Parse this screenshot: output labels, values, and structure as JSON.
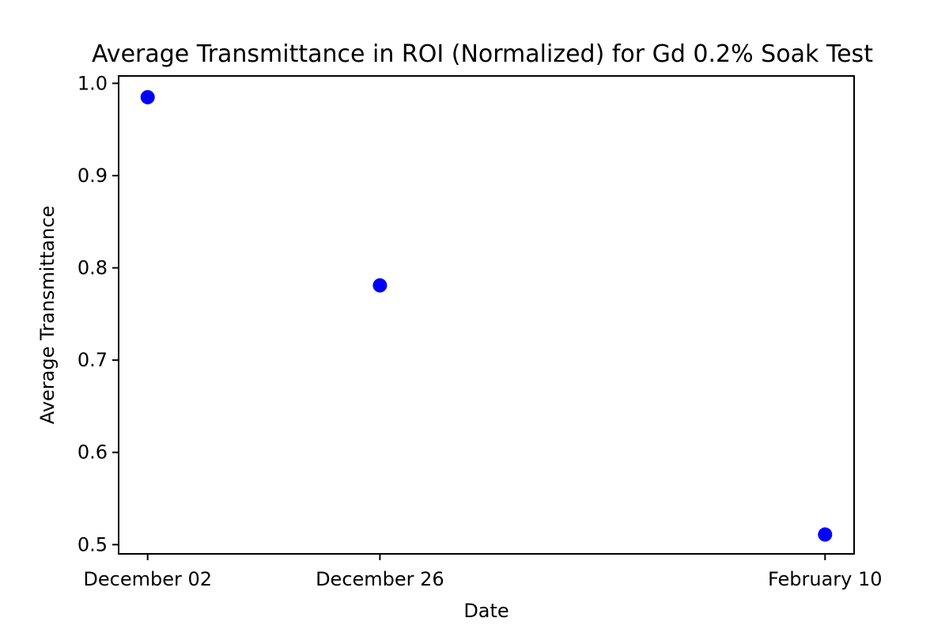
{
  "chart_data": {
    "type": "scatter",
    "title": "Average Transmittance in ROI (Normalized) for Gd 0.2% Soak Test",
    "xlabel": "Date",
    "ylabel": "Average Transmittance",
    "x": [
      "December 02",
      "December 26",
      "February 10"
    ],
    "series": [
      {
        "values": [
          0.985,
          0.781,
          0.511
        ],
        "color": "#0000ff"
      }
    ],
    "x_ticks": [
      "December 02",
      "December 26",
      "February 10"
    ],
    "y_ticks": [
      0.5,
      0.6,
      0.7,
      0.8,
      0.9,
      1.0
    ],
    "y_tick_labels": [
      "0.5",
      "0.6",
      "0.7",
      "0.8",
      "0.9",
      "1.0"
    ],
    "ylim": [
      0.49,
      1.008
    ],
    "xlim": [
      "November 29",
      "February 13"
    ],
    "grid": false,
    "legend": "none"
  }
}
